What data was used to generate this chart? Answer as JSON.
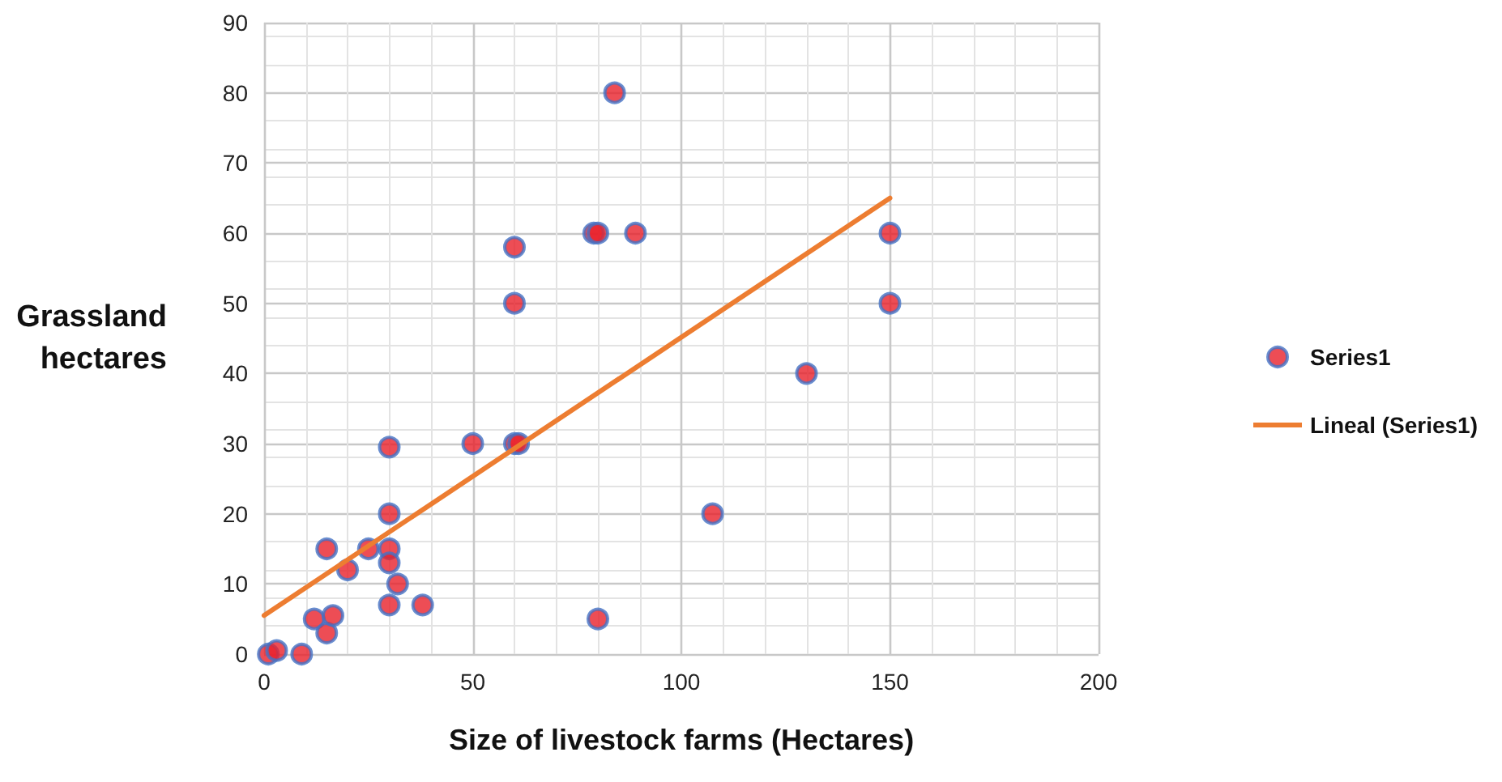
{
  "chart_data": {
    "type": "scatter",
    "xlabel": "Size of livestock farms (Hectares)",
    "ylabel": "Grassland hectares",
    "xlim": [
      0,
      200
    ],
    "xticks": [
      0,
      50,
      100,
      150,
      200
    ],
    "ylim": [
      0,
      90
    ],
    "yticks": [
      0,
      10,
      20,
      30,
      40,
      50,
      60,
      70,
      80,
      90
    ],
    "grid": true,
    "legend": "right",
    "marker": "circle",
    "series": [
      {
        "name": "Series1",
        "type": "scatter",
        "color": "#e8202a",
        "x": [
          1,
          3,
          9,
          12,
          15,
          16.5,
          15,
          20,
          25,
          30,
          30,
          32,
          30,
          38,
          30,
          30,
          50,
          60,
          61,
          60,
          60,
          79,
          80,
          89,
          84,
          80,
          107.5,
          130,
          150,
          150
        ],
        "values": [
          0,
          0.5,
          0,
          5,
          3,
          5.5,
          15,
          12,
          15,
          15,
          13,
          10,
          7,
          7,
          20,
          29.5,
          30,
          30,
          30,
          50,
          58,
          60,
          60,
          60,
          80,
          5,
          20,
          40,
          60,
          50
        ]
      },
      {
        "name": "Lineal (Series1)",
        "type": "line",
        "color": "#ed7d31",
        "marker": "none",
        "line_style": "solid",
        "x": [
          0,
          150
        ],
        "values": [
          5.5,
          65
        ]
      }
    ]
  }
}
